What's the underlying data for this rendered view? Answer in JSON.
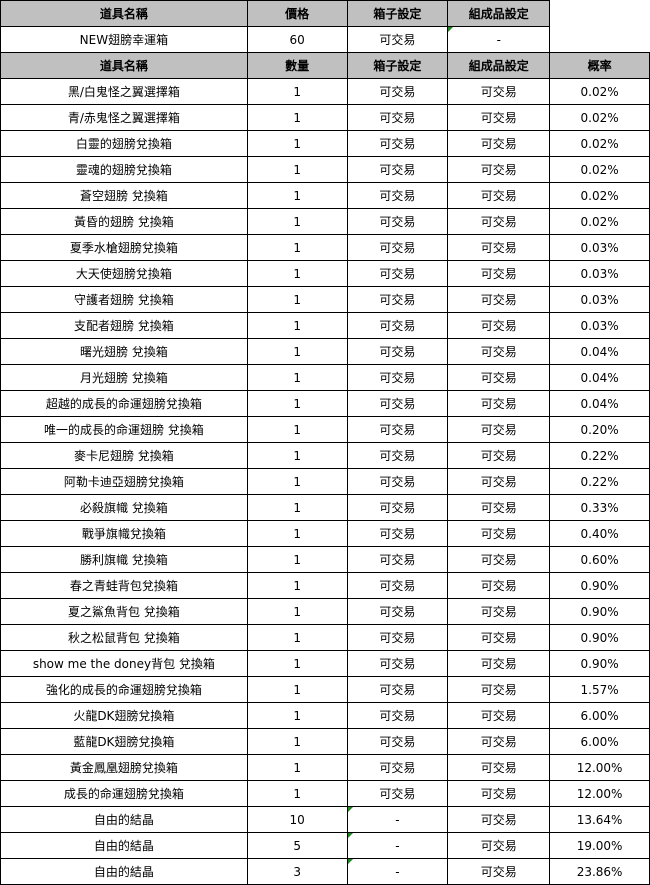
{
  "box_header": [
    "道具名稱",
    "價格",
    "箱子設定",
    "組成品設定"
  ],
  "box_row": {
    "name": "NEW翅膀幸運箱",
    "price": "60",
    "box_setting": "可交易",
    "component_setting": "-"
  },
  "items_header": [
    "道具名稱",
    "數量",
    "箱子設定",
    "組成品設定",
    "概率"
  ],
  "items": [
    [
      "黑/白鬼怪之翼選擇箱",
      "1",
      "可交易",
      "可交易",
      "0.02%"
    ],
    [
      "青/赤鬼怪之翼選擇箱",
      "1",
      "可交易",
      "可交易",
      "0.02%"
    ],
    [
      "白靈的翅膀兌換箱",
      "1",
      "可交易",
      "可交易",
      "0.02%"
    ],
    [
      "靈魂的翅膀兌換箱",
      "1",
      "可交易",
      "可交易",
      "0.02%"
    ],
    [
      "蒼空翅膀 兌換箱",
      "1",
      "可交易",
      "可交易",
      "0.02%"
    ],
    [
      "黃昏的翅膀 兌換箱",
      "1",
      "可交易",
      "可交易",
      "0.02%"
    ],
    [
      "夏季水槍翅膀兌換箱",
      "1",
      "可交易",
      "可交易",
      "0.03%"
    ],
    [
      "大天使翅膀兌換箱",
      "1",
      "可交易",
      "可交易",
      "0.03%"
    ],
    [
      "守護者翅膀 兌換箱",
      "1",
      "可交易",
      "可交易",
      "0.03%"
    ],
    [
      "支配者翅膀 兌換箱",
      "1",
      "可交易",
      "可交易",
      "0.03%"
    ],
    [
      "曙光翅膀 兌換箱",
      "1",
      "可交易",
      "可交易",
      "0.04%"
    ],
    [
      "月光翅膀 兌換箱",
      "1",
      "可交易",
      "可交易",
      "0.04%"
    ],
    [
      "超越的成長的命運翅膀兌換箱",
      "1",
      "可交易",
      "可交易",
      "0.04%"
    ],
    [
      "唯一的成長的命運翅膀 兌換箱",
      "1",
      "可交易",
      "可交易",
      "0.20%"
    ],
    [
      "麥卡尼翅膀 兌換箱",
      "1",
      "可交易",
      "可交易",
      "0.22%"
    ],
    [
      "阿勒卡迪亞翅膀兌換箱",
      "1",
      "可交易",
      "可交易",
      "0.22%"
    ],
    [
      "必殺旗幟 兌換箱",
      "1",
      "可交易",
      "可交易",
      "0.33%"
    ],
    [
      "戰爭旗幟兌換箱",
      "1",
      "可交易",
      "可交易",
      "0.40%"
    ],
    [
      "勝利旗幟 兌換箱",
      "1",
      "可交易",
      "可交易",
      "0.60%"
    ],
    [
      "春之青蛙背包兌換箱",
      "1",
      "可交易",
      "可交易",
      "0.90%"
    ],
    [
      "夏之鯊魚背包 兌換箱",
      "1",
      "可交易",
      "可交易",
      "0.90%"
    ],
    [
      "秋之松鼠背包 兌換箱",
      "1",
      "可交易",
      "可交易",
      "0.90%"
    ],
    [
      "show me the doney背包 兌換箱",
      "1",
      "可交易",
      "可交易",
      "0.90%"
    ],
    [
      "強化的成長的命運翅膀兌換箱",
      "1",
      "可交易",
      "可交易",
      "1.57%"
    ],
    [
      "火龍DK翅膀兌換箱",
      "1",
      "可交易",
      "可交易",
      "6.00%"
    ],
    [
      "藍龍DK翅膀兌換箱",
      "1",
      "可交易",
      "可交易",
      "6.00%"
    ],
    [
      "黃金鳳凰翅膀兌換箱",
      "1",
      "可交易",
      "可交易",
      "12.00%"
    ],
    [
      "成長的命運翅膀兌換箱",
      "1",
      "可交易",
      "可交易",
      "12.00%"
    ],
    [
      "自由的結晶",
      "10",
      "-",
      "可交易",
      "13.64%"
    ],
    [
      "自由的結晶",
      "5",
      "-",
      "可交易",
      "19.00%"
    ],
    [
      "自由的結晶",
      "3",
      "-",
      "可交易",
      "23.86%"
    ]
  ]
}
